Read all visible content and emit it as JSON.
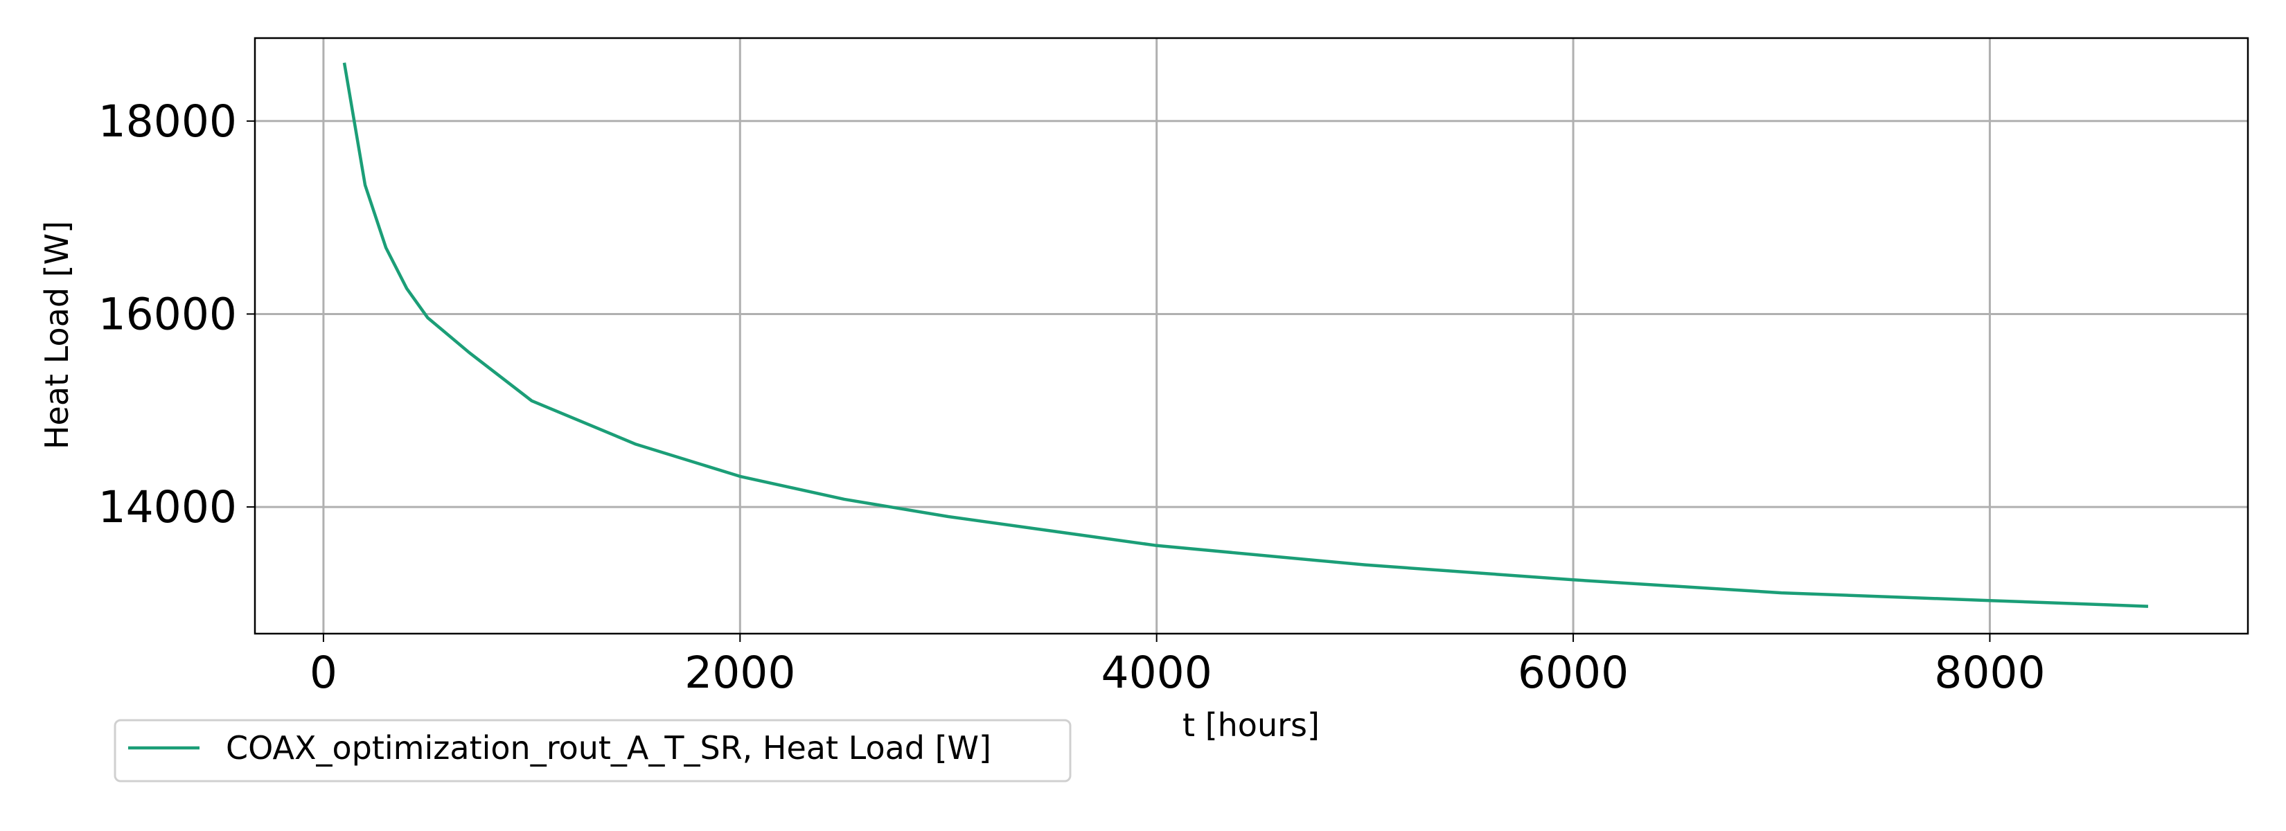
{
  "chart_data": {
    "type": "line",
    "x_label": "t [hours]",
    "y_label": "Heat Load [W]",
    "x": [
      100,
      200,
      300,
      400,
      500,
      700,
      1000,
      1500,
      2000,
      2500,
      3000,
      4000,
      5000,
      6000,
      7000,
      8000,
      8760
    ],
    "series": [
      {
        "name": "COAX_optimization_rout_A_T_SR, Heat Load [W]",
        "color": "#1b9e77",
        "values": [
          18604,
          17336,
          16687,
          16264,
          15962,
          15600,
          15100,
          14650,
          14317,
          14080,
          13900,
          13600,
          13400,
          13245,
          13110,
          13030,
          12970
        ]
      }
    ],
    "xlim": [
      -329,
      9239
    ],
    "ylim": [
      12687,
      18860
    ],
    "xticks": [
      0,
      2000,
      4000,
      6000,
      8000
    ],
    "yticks": [
      14000,
      16000,
      18000
    ],
    "grid": true,
    "legend": "lower-left"
  }
}
